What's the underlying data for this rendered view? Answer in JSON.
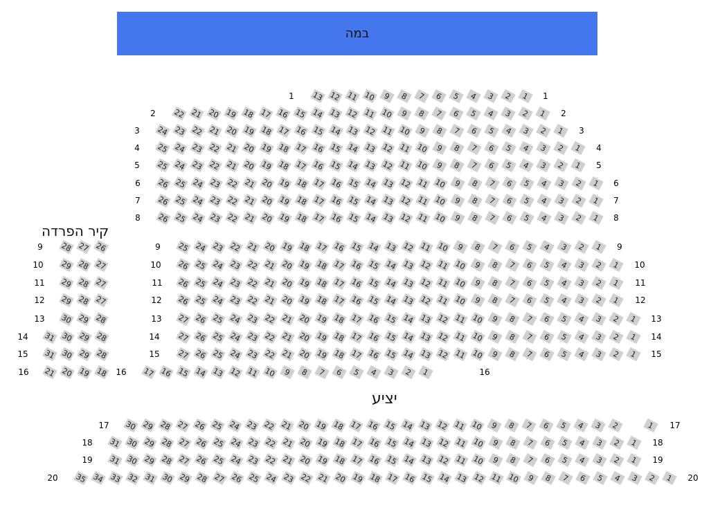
{
  "stage": {
    "label": "במה",
    "color": "#4477ee"
  },
  "wall_label": "קיר הפרדה",
  "balcony_label": "יציע",
  "seat_color": "#d0d0d0",
  "rows": [
    {
      "label": "1",
      "sections": [
        [
          13,
          12,
          11,
          10,
          9,
          8,
          7,
          6,
          5,
          4,
          3,
          2,
          1
        ]
      ]
    },
    {
      "label": "2",
      "sections": [
        [
          22,
          21,
          20,
          19,
          18,
          17,
          16,
          15,
          14,
          13,
          12,
          11,
          10,
          9,
          8,
          7,
          6,
          5,
          4,
          3,
          2,
          1
        ]
      ]
    },
    {
      "label": "3",
      "sections": [
        [
          24,
          23,
          22,
          21,
          20,
          19,
          18,
          17,
          16,
          15,
          14,
          13,
          12,
          11,
          10,
          9,
          8,
          7,
          6,
          5,
          4,
          3,
          2,
          1
        ]
      ]
    },
    {
      "label": "4",
      "sections": [
        [
          25,
          24,
          23,
          22,
          21,
          20,
          19,
          18,
          17,
          16,
          15,
          14,
          13,
          12,
          11,
          10,
          9,
          8,
          7,
          6,
          5,
          4,
          3,
          2,
          1
        ]
      ]
    },
    {
      "label": "5",
      "sections": [
        [
          25,
          24,
          23,
          22,
          21,
          20,
          19,
          18,
          17,
          16,
          15,
          14,
          13,
          12,
          11,
          10,
          9,
          8,
          7,
          6,
          5,
          4,
          3,
          2,
          1
        ]
      ]
    },
    {
      "label": "6",
      "sections": [
        [
          26,
          25,
          24,
          23,
          22,
          21,
          20,
          19,
          18,
          17,
          16,
          15,
          14,
          13,
          12,
          11,
          10,
          9,
          8,
          7,
          6,
          5,
          4,
          3,
          2,
          1
        ]
      ]
    },
    {
      "label": "7",
      "sections": [
        [
          26,
          25,
          24,
          23,
          22,
          21,
          20,
          19,
          18,
          17,
          16,
          15,
          14,
          13,
          12,
          11,
          10,
          9,
          8,
          7,
          6,
          5,
          4,
          3,
          2,
          1
        ]
      ]
    },
    {
      "label": "8",
      "sections": [
        [
          26,
          25,
          24,
          23,
          22,
          21,
          20,
          19,
          18,
          17,
          16,
          15,
          14,
          13,
          12,
          11,
          10,
          9,
          8,
          7,
          6,
          5,
          4,
          3,
          2,
          1
        ]
      ]
    },
    {
      "label": "9",
      "sections": [
        [
          28,
          27,
          26
        ],
        [
          25,
          24,
          23,
          22,
          21,
          20,
          19,
          18,
          17,
          16,
          15,
          14,
          13,
          12,
          11,
          10,
          9,
          8,
          7,
          6,
          5,
          4,
          3,
          2,
          1
        ]
      ]
    },
    {
      "label": "10",
      "sections": [
        [
          29,
          28,
          27
        ],
        [
          26,
          25,
          24,
          23,
          22,
          21,
          20,
          19,
          18,
          17,
          16,
          15,
          14,
          13,
          12,
          11,
          10,
          9,
          8,
          7,
          6,
          5,
          4,
          3,
          2,
          1
        ]
      ]
    },
    {
      "label": "11",
      "sections": [
        [
          29,
          28,
          27
        ],
        [
          26,
          25,
          24,
          23,
          22,
          21,
          20,
          19,
          18,
          17,
          16,
          15,
          14,
          13,
          12,
          11,
          10,
          9,
          8,
          7,
          6,
          5,
          4,
          3,
          2,
          1
        ]
      ]
    },
    {
      "label": "12",
      "sections": [
        [
          29,
          28,
          27
        ],
        [
          26,
          25,
          24,
          23,
          22,
          21,
          20,
          19,
          18,
          17,
          16,
          15,
          14,
          13,
          12,
          11,
          10,
          9,
          8,
          7,
          6,
          5,
          4,
          3,
          2,
          1
        ]
      ]
    },
    {
      "label": "13",
      "sections": [
        [
          30,
          29,
          28
        ],
        [
          27,
          26,
          25,
          24,
          23,
          22,
          21,
          20,
          19,
          18,
          17,
          16,
          15,
          14,
          13,
          12,
          11,
          10,
          9,
          8,
          7,
          6,
          5,
          4,
          3,
          2,
          1
        ]
      ]
    },
    {
      "label": "14",
      "sections": [
        [
          31,
          30,
          29,
          28
        ],
        [
          27,
          26,
          25,
          24,
          23,
          22,
          21,
          20,
          19,
          18,
          17,
          16,
          15,
          14,
          13,
          12,
          11,
          10,
          9,
          8,
          7,
          6,
          5,
          4,
          3,
          2,
          1
        ]
      ]
    },
    {
      "label": "15",
      "sections": [
        [
          31,
          30,
          29,
          28
        ],
        [
          27,
          26,
          25,
          24,
          23,
          22,
          21,
          20,
          19,
          18,
          17,
          16,
          15,
          14,
          13,
          12,
          11,
          10,
          9,
          8,
          7,
          6,
          5,
          4,
          3,
          2,
          1
        ]
      ]
    },
    {
      "label": "16",
      "sections": [
        [
          21,
          20,
          19,
          18
        ],
        [
          17,
          16,
          15,
          14,
          13,
          12,
          11,
          10,
          9,
          8,
          7,
          6,
          5,
          4,
          3,
          2,
          1
        ]
      ]
    },
    {
      "label": "17",
      "sections": [
        [
          30,
          29,
          28,
          27,
          26,
          25,
          24,
          23,
          22,
          21,
          20,
          19,
          18,
          17,
          16,
          15,
          14,
          13,
          12,
          11,
          10,
          9,
          8,
          7,
          6,
          5,
          4,
          3,
          2
        ],
        [
          1
        ]
      ]
    },
    {
      "label": "18",
      "sections": [
        [
          31,
          30,
          29,
          28,
          27,
          26,
          25,
          24,
          23,
          22,
          21,
          20,
          19,
          18,
          17,
          16,
          15,
          14,
          13,
          12,
          11,
          10,
          9,
          8,
          7,
          6,
          5,
          4,
          3,
          2,
          1
        ]
      ]
    },
    {
      "label": "19",
      "sections": [
        [
          31,
          30,
          29,
          28,
          27,
          26,
          25,
          24,
          23,
          22,
          21,
          20,
          19,
          18,
          17,
          16,
          15,
          14,
          13,
          12,
          11,
          10,
          9,
          8,
          7,
          6,
          5,
          4,
          3,
          2,
          1
        ]
      ]
    },
    {
      "label": "20",
      "sections": [
        [
          35,
          34,
          33,
          32,
          31,
          30,
          29,
          28,
          27,
          26,
          25,
          24,
          23,
          22,
          21,
          20,
          19,
          18,
          17,
          16,
          15,
          14,
          13,
          12,
          11,
          10,
          9,
          8,
          7,
          6,
          5,
          4,
          3,
          2,
          1
        ]
      ]
    }
  ]
}
